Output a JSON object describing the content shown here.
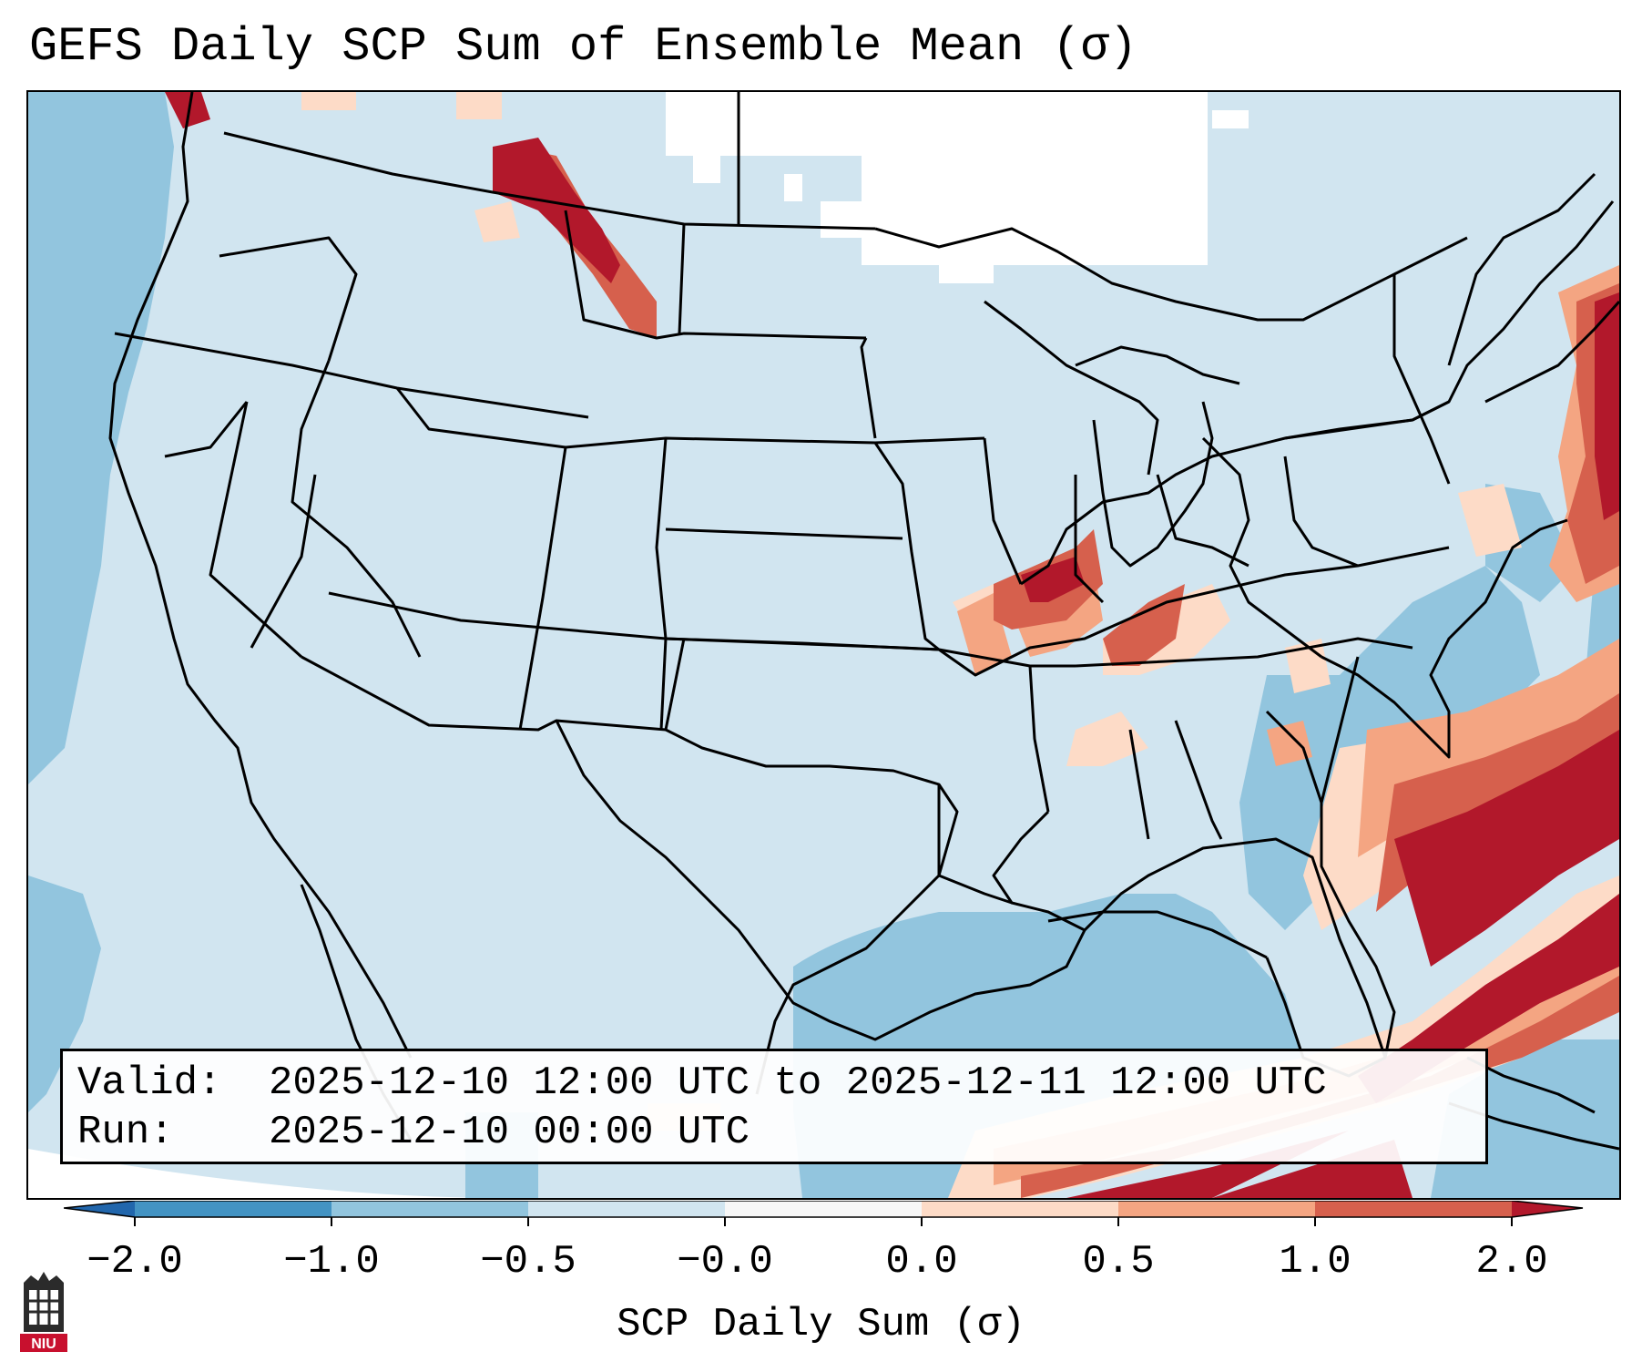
{
  "title": "GEFS Daily SCP Sum of Ensemble Mean (σ)",
  "info": {
    "valid_label": "Valid:",
    "valid_value": "2025-12-10 12:00 UTC to 2025-12-11 12:00 UTC",
    "run_label": "Run:",
    "run_value": "2025-12-10 00:00 UTC"
  },
  "colorbar": {
    "title": "SCP Daily Sum (σ)",
    "tick_labels": [
      "−2.0",
      "−1.0",
      "−0.5",
      "−0.0",
      "0.0",
      "0.5",
      "1.0",
      "2.0"
    ],
    "colors": {
      "below_min": "#2166ac",
      "neg_2_to_1": "#4393c3",
      "neg_1_to_05": "#92c5de",
      "neg_05_to_0": "#d1e5f0",
      "zero_band": "#f7f7f7",
      "pos_0_to_05": "#fddbc7",
      "pos_05_to_1": "#f4a582",
      "pos_1_to_2": "#d6604d",
      "above_max": "#b2182b"
    }
  },
  "logo": {
    "text": "NIU",
    "color": "#c8102e"
  }
}
